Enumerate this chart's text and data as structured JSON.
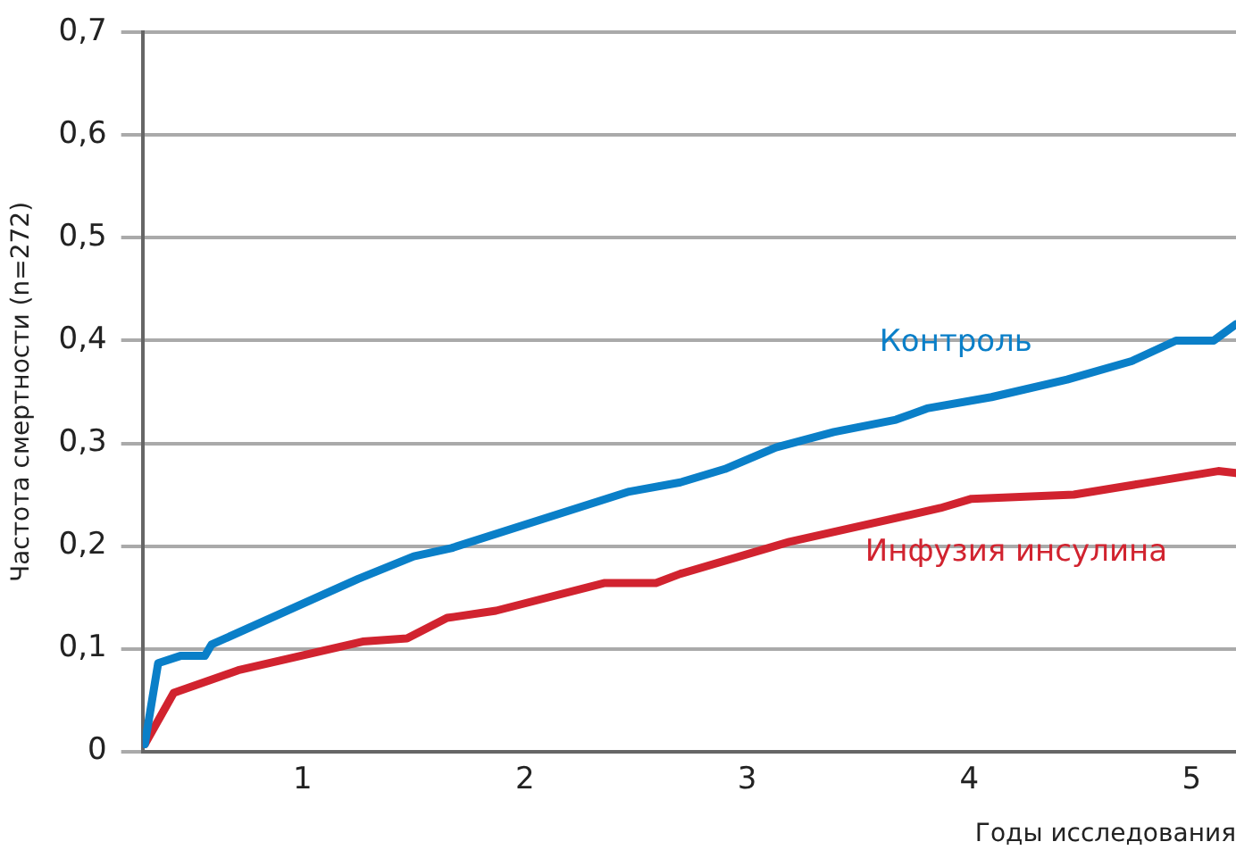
{
  "chart_data": {
    "type": "line",
    "xlabel": "Годы исследования",
    "ylabel": "Частота смертности (n=272)",
    "xlim": [
      0.28,
      5.2
    ],
    "xticks": [
      1,
      2,
      3,
      4,
      5
    ],
    "ylim": [
      0,
      0.7
    ],
    "yticks": [
      0,
      {
        "value": 0.1,
        "label": "0,1"
      },
      {
        "value": 0.2,
        "label": "0,2"
      },
      {
        "value": 0.3,
        "label": "0,3"
      },
      {
        "value": 0.4,
        "label": "0,4"
      },
      {
        "value": 0.5,
        "label": "0,5"
      },
      {
        "value": 0.6,
        "label": "0,6"
      },
      {
        "value": 0.7,
        "label": "0,7"
      }
    ],
    "grid": "y",
    "legend": false,
    "marker": "none",
    "line_style": "solid",
    "series": [
      {
        "name": "Контроль",
        "color": "#0a7fc8",
        "x": [
          0.29,
          0.35,
          0.45,
          0.56,
          0.59,
          1.25,
          1.5,
          1.67,
          2.47,
          2.7,
          2.9,
          3.13,
          3.39,
          3.67,
          3.81,
          4.1,
          4.44,
          4.73,
          4.93,
          5.1,
          5.2
        ],
        "values": [
          0.007,
          0.086,
          0.093,
          0.093,
          0.104,
          0.168,
          0.19,
          0.198,
          0.253,
          0.262,
          0.275,
          0.296,
          0.311,
          0.323,
          0.334,
          0.345,
          0.362,
          0.38,
          0.4,
          0.4,
          0.416
        ]
      },
      {
        "name": "Инфузия инсулина",
        "color": "#d1232f",
        "x": [
          0.29,
          0.42,
          0.71,
          1.27,
          1.47,
          1.65,
          1.87,
          2.36,
          2.59,
          2.7,
          3.19,
          3.87,
          4.01,
          4.47,
          4.78,
          5.12,
          5.2
        ],
        "values": [
          0.007,
          0.057,
          0.079,
          0.107,
          0.11,
          0.13,
          0.137,
          0.164,
          0.164,
          0.173,
          0.204,
          0.237,
          0.246,
          0.25,
          0.261,
          0.273,
          0.271
        ]
      }
    ]
  }
}
